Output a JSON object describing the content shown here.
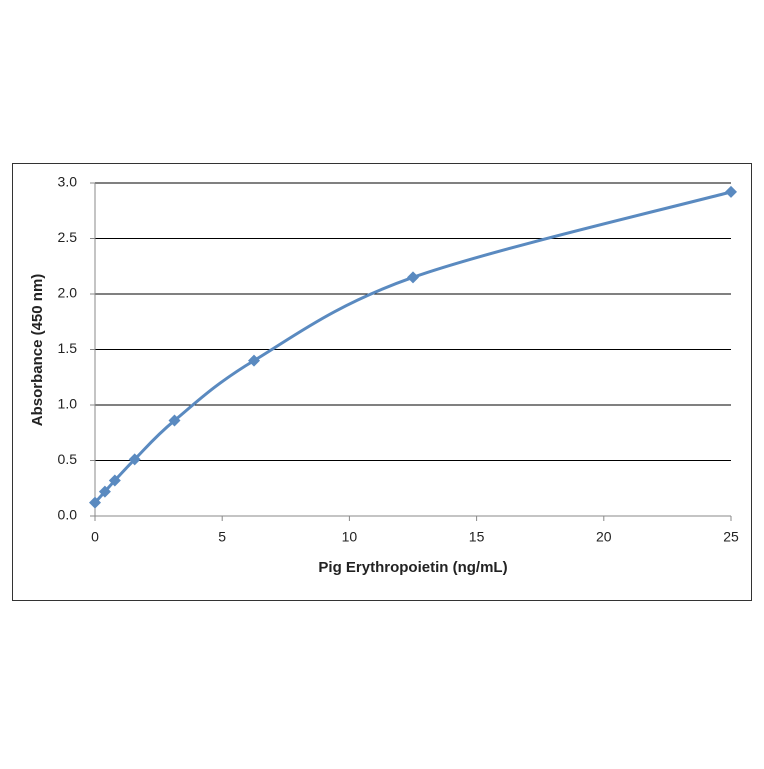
{
  "chart_data": {
    "type": "line",
    "xlabel": "Pig Erythropoietin  (ng/mL)",
    "ylabel": "Absorbance  (450 nm)",
    "x": [
      0,
      0.39,
      0.78,
      1.56,
      3.125,
      6.25,
      12.5,
      25
    ],
    "values": [
      0.12,
      0.22,
      0.32,
      0.51,
      0.86,
      1.4,
      2.15,
      2.92
    ],
    "color": "#5a8ac0",
    "marker": "diamond",
    "smooth": true,
    "xlim": [
      0,
      25
    ],
    "xticks": [
      0,
      5,
      10,
      15,
      20,
      25
    ],
    "ylim": [
      0,
      3
    ],
    "yticks": [
      {
        "value": 0,
        "label": "0.0"
      },
      0.5,
      {
        "value": 1,
        "label": "1.0"
      },
      1.5,
      {
        "value": 2,
        "label": "2.0"
      },
      2.5,
      {
        "value": 3,
        "label": "3.0"
      }
    ],
    "grid": true
  }
}
